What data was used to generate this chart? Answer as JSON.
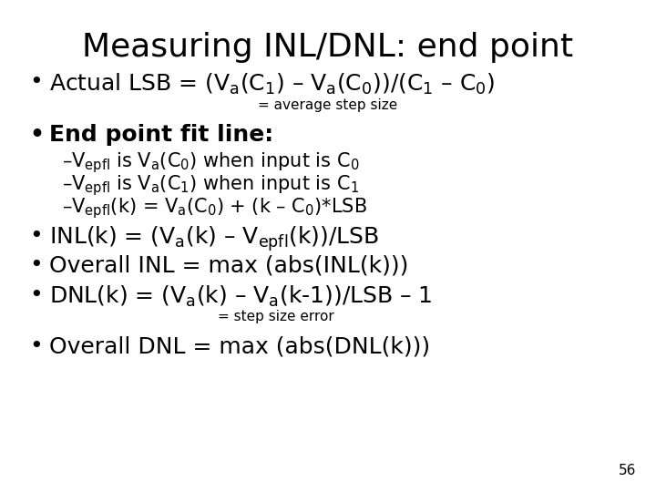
{
  "title": "Measuring INL/DNL: end point",
  "background_color": "#ffffff",
  "text_color": "#000000",
  "title_fontsize": 26,
  "body_fontsize": 18,
  "sub_fontsize": 15,
  "small_fontsize": 11,
  "page_number": "56",
  "bullet1": "Actual LSB = (V$_\\mathregular{a}$(C$_1$) – V$_\\mathregular{a}$(C$_0$))/(C$_1$ – C$_0$)",
  "avg_step": "= average step size",
  "bullet2": "End point fit line:",
  "sub1": "–V$_\\mathregular{epfl}$ is V$_\\mathregular{a}$(C$_0$) when input is C$_0$",
  "sub2": "–V$_\\mathregular{epfl}$ is V$_\\mathregular{a}$(C$_1$) when input is C$_1$",
  "sub3": "–V$_\\mathregular{epfl}$(k) = V$_\\mathregular{a}$(C$_0$) + (k – C$_0$)*LSB",
  "bullet3": "INL(k) = (V$_\\mathregular{a}$(k) – V$_\\mathregular{epfl}$(k))/LSB",
  "bullet4": "Overall INL = max (abs(INL(k)))",
  "bullet5": "DNL(k) = (V$_\\mathregular{a}$(k) – V$_\\mathregular{a}$(k-1))/LSB – 1",
  "step_err": "= step size error",
  "bullet6": "Overall DNL = max (abs(DNL(k)))"
}
